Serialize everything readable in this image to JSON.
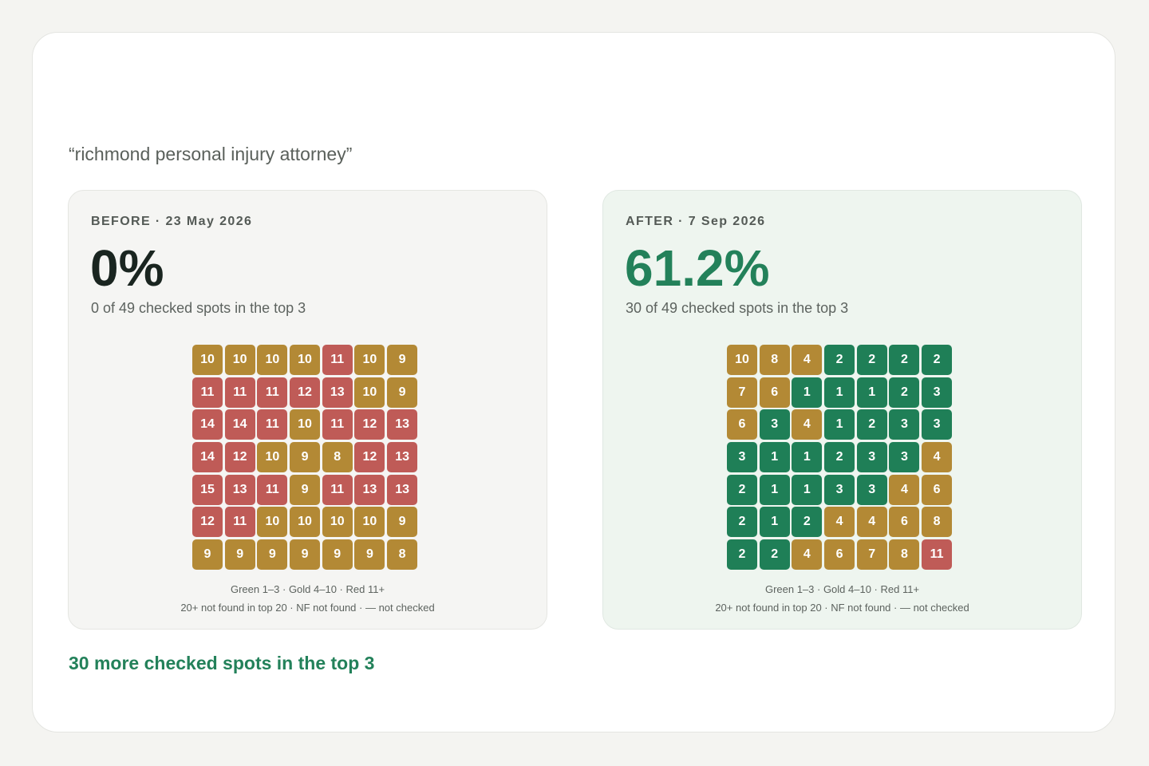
{
  "keyword": "“richmond personal injury attorney”",
  "colors": {
    "green": "#1f7f57",
    "gold": "#b38935",
    "red": "#bf5b57",
    "accent": "#23815a"
  },
  "before": {
    "label": "BEFORE · 23 May 2026",
    "percent": "0%",
    "subtitle": "0 of 49 checked spots in the top 3",
    "grid": [
      [
        10,
        10,
        10,
        10,
        11,
        10,
        9
      ],
      [
        11,
        11,
        11,
        12,
        13,
        10,
        9
      ],
      [
        14,
        14,
        11,
        10,
        11,
        12,
        13
      ],
      [
        14,
        12,
        10,
        9,
        8,
        12,
        13
      ],
      [
        15,
        13,
        11,
        9,
        11,
        13,
        13
      ],
      [
        12,
        11,
        10,
        10,
        10,
        10,
        9
      ],
      [
        9,
        9,
        9,
        9,
        9,
        9,
        8
      ]
    ],
    "legend_line1": "Green 1–3 · Gold 4–10 · Red 11+",
    "legend_line2": "20+ not found in top 20 · NF not found · — not checked"
  },
  "after": {
    "label": "AFTER · 7 Sep 2026",
    "percent": "61.2%",
    "subtitle": "30 of 49 checked spots in the top 3",
    "grid": [
      [
        10,
        8,
        4,
        2,
        2,
        2,
        2
      ],
      [
        7,
        6,
        1,
        1,
        1,
        2,
        3
      ],
      [
        6,
        3,
        4,
        1,
        2,
        3,
        3
      ],
      [
        3,
        1,
        1,
        2,
        3,
        3,
        4
      ],
      [
        2,
        1,
        1,
        3,
        3,
        4,
        6
      ],
      [
        2,
        1,
        2,
        4,
        4,
        6,
        8
      ],
      [
        2,
        2,
        4,
        6,
        7,
        8,
        11
      ]
    ],
    "legend_line1": "Green 1–3 · Gold 4–10 · Red 11+",
    "legend_line2": "20+ not found in top 20 · NF not found · — not checked"
  },
  "summary": "30 more checked spots in the top 3"
}
